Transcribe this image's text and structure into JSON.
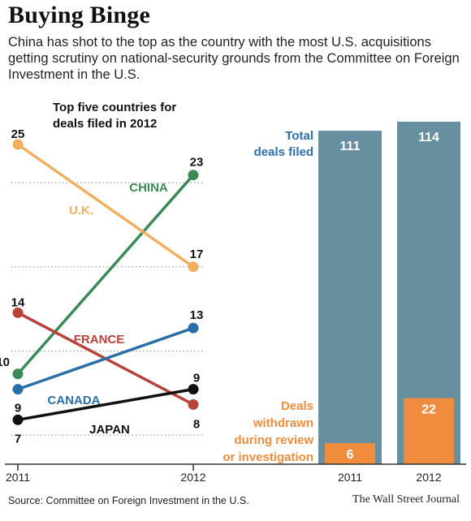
{
  "header": {
    "title": "Buying Binge",
    "subtitle": "China has shot to the top as the country with the most U.S. acquisitions getting scrutiny on national-security grounds from the Committee on Foreign Investment in the U.S."
  },
  "footer": {
    "source": "Source: Committee on Foreign Investment in the U.S.",
    "credit": "The Wall Street Journal"
  },
  "colors": {
    "china": "#3a8a57",
    "uk": "#f0b060",
    "france": "#b8433b",
    "canada": "#2b6fa8",
    "japan": "#111111",
    "total_bar": "#66909f",
    "withdrawn_bar": "#ef8c3e",
    "total_label": "#2b6fa8",
    "withdrawn_label": "#ef8c3e",
    "gridline": "#888888"
  },
  "chart_data": [
    {
      "type": "line",
      "title": "Top five countries for deals filed in 2012",
      "x": [
        "2011",
        "2012"
      ],
      "ylim": [
        5,
        25
      ],
      "series": [
        {
          "name": "CHINA",
          "values": [
            10,
            23
          ],
          "color_key": "china"
        },
        {
          "name": "U.K.",
          "values": [
            25,
            17
          ],
          "color_key": "uk"
        },
        {
          "name": "FRANCE",
          "values": [
            14,
            8
          ],
          "color_key": "france"
        },
        {
          "name": "CANADA",
          "values": [
            9,
            13
          ],
          "color_key": "canada"
        },
        {
          "name": "JAPAN",
          "values": [
            7,
            9
          ],
          "color_key": "japan"
        }
      ]
    },
    {
      "type": "bar",
      "categories": [
        "2011",
        "2012"
      ],
      "series": [
        {
          "name": "Total deals filed",
          "values": [
            111,
            114
          ],
          "color_key": "total_bar"
        },
        {
          "name": "Deals withdrawn during review or investigation",
          "values": [
            6,
            22
          ],
          "color_key": "withdrawn_bar"
        }
      ],
      "ylim": [
        0,
        114
      ]
    }
  ]
}
